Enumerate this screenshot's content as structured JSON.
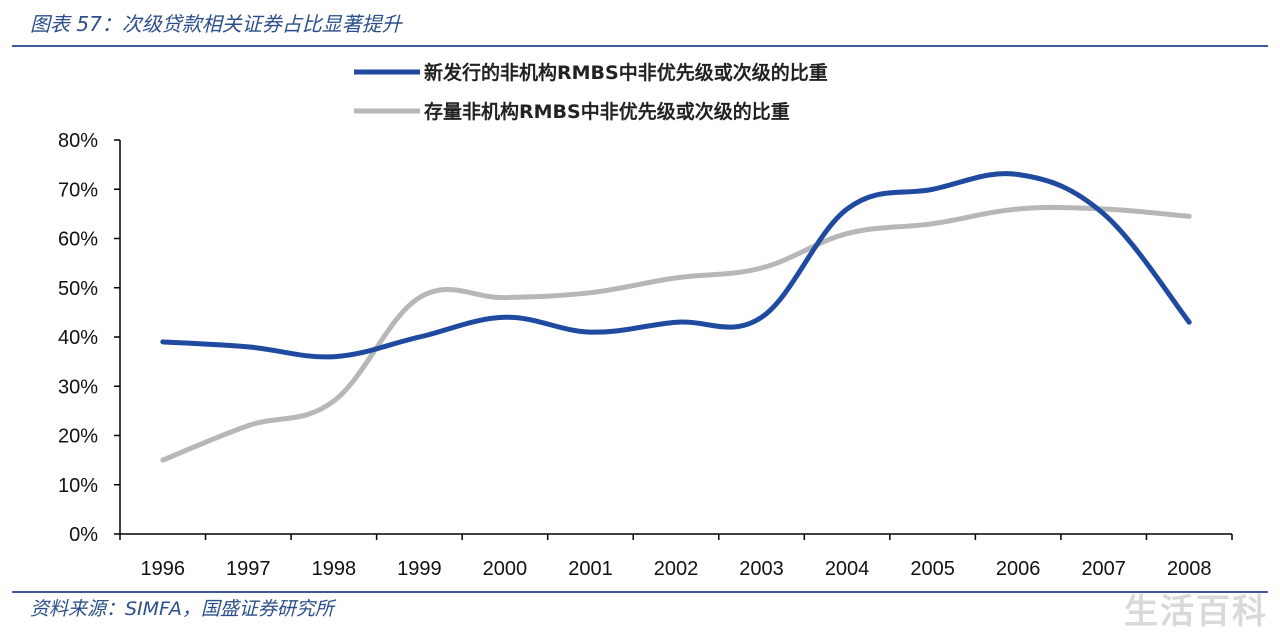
{
  "figure": {
    "title": "图表 57：次级贷款相关证券占比显著提升",
    "source": "资料来源：SIMFA，国盛证券研究所",
    "watermark": "生活百科"
  },
  "colors": {
    "new_issue": "#1f4aa0",
    "outstanding": "#b7b7b7",
    "text_accent": "#2b4f8a"
  },
  "chart_data": {
    "type": "line",
    "title": "",
    "xlabel": "",
    "ylabel": "",
    "categories": [
      "1996",
      "1997",
      "1998",
      "1999",
      "2000",
      "2001",
      "2002",
      "2003",
      "2004",
      "2005",
      "2006",
      "2007",
      "2008"
    ],
    "ylim": [
      0,
      80
    ],
    "yticks": [
      "0%",
      "10%",
      "20%",
      "30%",
      "40%",
      "50%",
      "60%",
      "70%",
      "80%"
    ],
    "grid": false,
    "legend_position": "top-right",
    "series": [
      {
        "name": "新发行的非机构RMBS中非优先级或次级的比重",
        "values": [
          39,
          38,
          36,
          40,
          44,
          41,
          43,
          44,
          66,
          70,
          73,
          65,
          43
        ]
      },
      {
        "name": "存量非机构RMBS中非优先级或次级的比重",
        "values": [
          15,
          22,
          27,
          48,
          48,
          49,
          52,
          54,
          61,
          63,
          66,
          66,
          64.5
        ]
      }
    ]
  }
}
